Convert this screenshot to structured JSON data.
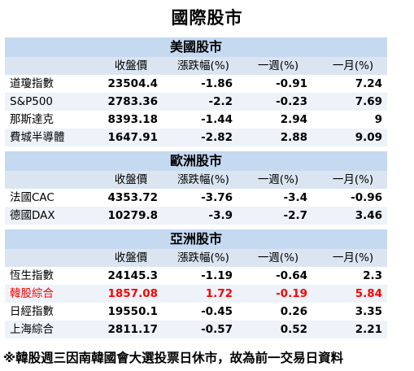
{
  "title": "國際股市",
  "columns": [
    "",
    "收盤價",
    "漲跌幅(%)",
    "一週(%)",
    "一月(%)"
  ],
  "sections": [
    {
      "name": "美國股市",
      "rows": [
        {
          "name": "道瓊指數",
          "close": "23504.4",
          "change": "-1.86",
          "week": "-0.91",
          "month": "7.24"
        },
        {
          "name": "S&P500",
          "close": "2783.36",
          "change": "-2.2",
          "week": "-0.23",
          "month": "7.69"
        },
        {
          "name": "那斯達克",
          "close": "8393.18",
          "change": "-1.44",
          "week": "2.94",
          "month": "9"
        },
        {
          "name": "費城半導體",
          "close": "1647.91",
          "change": "-2.82",
          "week": "2.88",
          "month": "9.09"
        }
      ]
    },
    {
      "name": "歐洲股市",
      "rows": [
        {
          "name": "法國CAC",
          "close": "4353.72",
          "change": "-3.76",
          "week": "-3.4",
          "month": "-0.96"
        },
        {
          "name": "德國DAX",
          "close": "10279.8",
          "change": "-3.9",
          "week": "-2.7",
          "month": "3.46"
        }
      ]
    },
    {
      "name": "亞洲股市",
      "rows": [
        {
          "name": "恆生指數",
          "close": "24145.3",
          "change": "-1.19",
          "week": "-0.64",
          "month": "2.3"
        },
        {
          "name": "韓股綜合",
          "close": "1857.08",
          "change": "1.72",
          "week": "-0.19",
          "month": "5.84"
        },
        {
          "name": "日經指數",
          "close": "19550.1",
          "change": "-0.45",
          "week": "0.26",
          "month": "3.35"
        },
        {
          "name": "上海綜合",
          "close": "2811.17",
          "change": "-0.57",
          "week": "0.52",
          "month": "2.21"
        }
      ]
    }
  ],
  "colors": {
    "section_header_bg": "#c5d9f1",
    "column_header_bg": "#dbe5f1",
    "alt_row_bg": "#eef3fa",
    "highlight_text": "#ff0000"
  },
  "footnote": "※韓股週三因南韓國會大選投票日休市，故為前一交易日資料"
}
